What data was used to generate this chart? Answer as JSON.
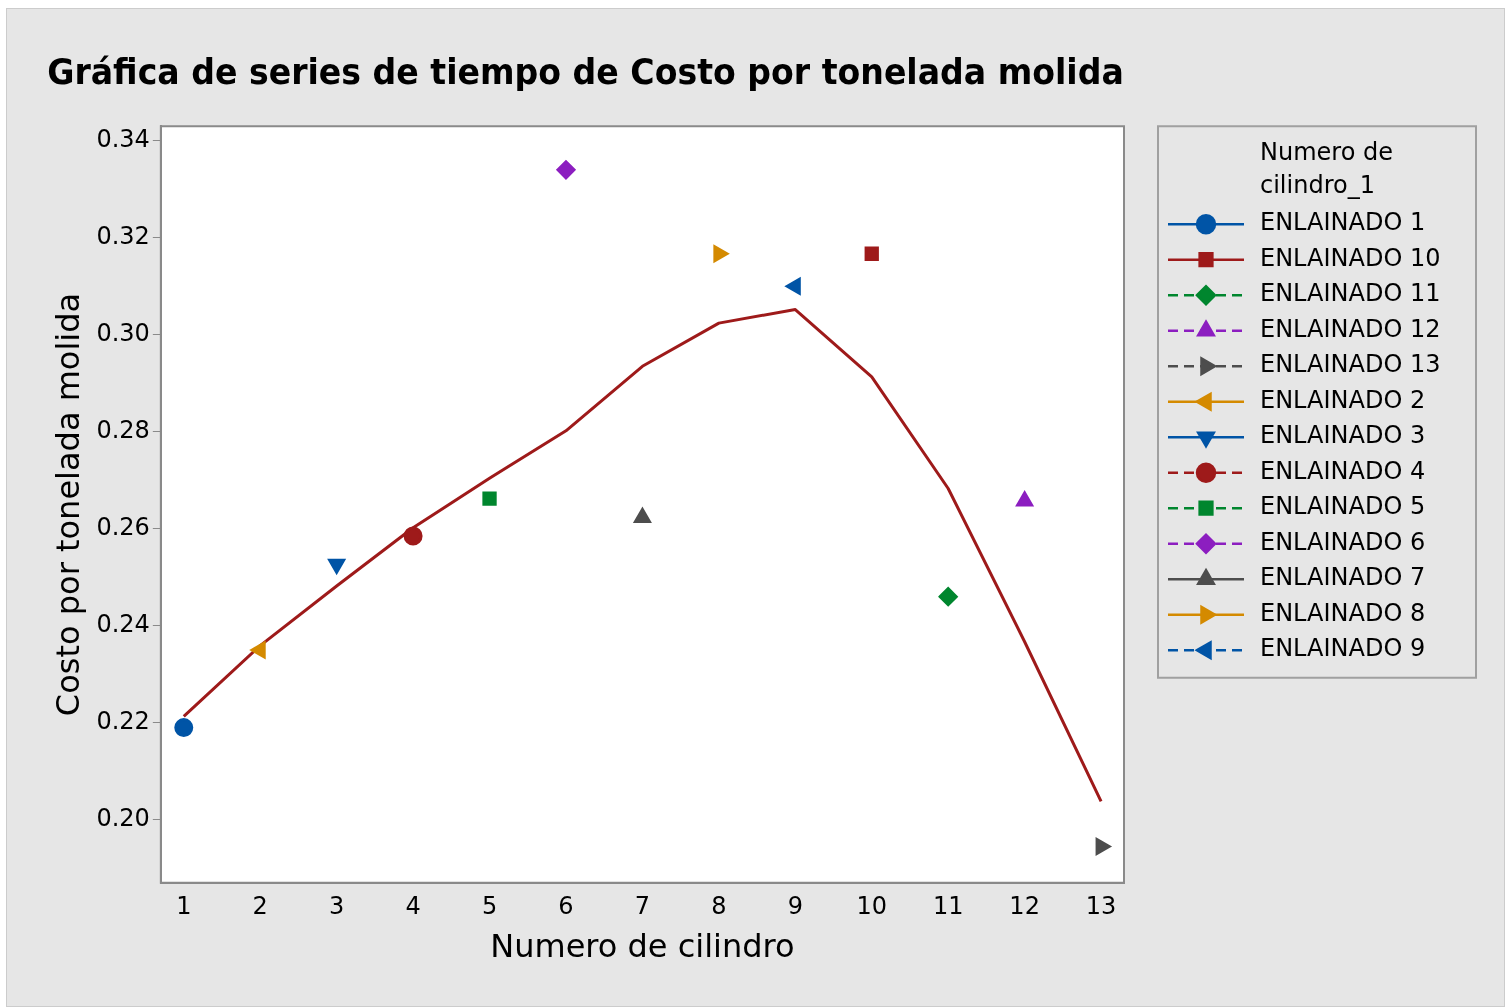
{
  "chart_data": {
    "type": "scatter",
    "title": "Gráfica de series de tiempo de Costo por tonelada molida",
    "xlabel": "Numero de cilindro",
    "ylabel": "Costo por tonelada molida",
    "legend_title": "Numero de cilindro_1",
    "legend": "right",
    "grid": false,
    "xlim": [
      0.7,
      13.3
    ],
    "xticks": [
      1,
      2,
      3,
      4,
      5,
      6,
      7,
      8,
      9,
      10,
      11,
      12,
      13
    ],
    "ylim": [
      0.187,
      0.343
    ],
    "yticks": [
      {
        "value": 0.2,
        "label": "0.20"
      },
      {
        "value": 0.22,
        "label": "0.22"
      },
      {
        "value": 0.24,
        "label": "0.24"
      },
      {
        "value": 0.26,
        "label": "0.26"
      },
      {
        "value": 0.28,
        "label": "0.28"
      },
      {
        "value": 0.3,
        "label": "0.30"
      },
      {
        "value": 0.32,
        "label": "0.32"
      },
      {
        "value": 0.34,
        "label": "0.34"
      }
    ],
    "series": [
      {
        "name": "ENLAINADO 1",
        "color": "#0054a6",
        "marker": "circle",
        "line_style": "solid",
        "x": [
          1
        ],
        "values": [
          0.219
        ]
      },
      {
        "name": "ENLAINADO 10",
        "color": "#9e1a1a",
        "marker": "square",
        "line_style": "solid",
        "x": [
          10
        ],
        "values": [
          0.3167
        ]
      },
      {
        "name": "ENLAINADO 11",
        "color": "#00862e",
        "marker": "diamond",
        "line_style": "dashed",
        "x": [
          11
        ],
        "values": [
          0.246
        ]
      },
      {
        "name": "ENLAINADO 12",
        "color": "#8c1ec0",
        "marker": "triangle",
        "line_style": "dashed",
        "x": [
          12
        ],
        "values": [
          0.2657
        ]
      },
      {
        "name": "ENLAINADO 13",
        "color": "#4d4d4d",
        "marker": "triangle-right",
        "line_style": "dashed",
        "x": [
          13
        ],
        "values": [
          0.1945
        ]
      },
      {
        "name": "ENLAINADO 2",
        "color": "#d48a00",
        "marker": "triangle-left",
        "line_style": "solid",
        "x": [
          2
        ],
        "values": [
          0.235
        ]
      },
      {
        "name": "ENLAINADO 3",
        "color": "#0054a6",
        "marker": "triangle-down",
        "line_style": "solid",
        "x": [
          3
        ],
        "values": [
          0.2527
        ]
      },
      {
        "name": "ENLAINADO 4",
        "color": "#9e1a1a",
        "marker": "circle",
        "line_style": "dashed",
        "x": [
          4
        ],
        "values": [
          0.2585
        ]
      },
      {
        "name": "ENLAINADO 5",
        "color": "#00862e",
        "marker": "square",
        "line_style": "dashed",
        "x": [
          5
        ],
        "values": [
          0.2662
        ]
      },
      {
        "name": "ENLAINADO 6",
        "color": "#8c1ec0",
        "marker": "diamond",
        "line_style": "dashed",
        "x": [
          6
        ],
        "values": [
          0.334
        ]
      },
      {
        "name": "ENLAINADO 7",
        "color": "#4d4d4d",
        "marker": "triangle",
        "line_style": "solid",
        "x": [
          7
        ],
        "values": [
          0.2623
        ]
      },
      {
        "name": "ENLAINADO 8",
        "color": "#d48a00",
        "marker": "triangle-right",
        "line_style": "solid",
        "x": [
          8
        ],
        "values": [
          0.3167
        ]
      },
      {
        "name": "ENLAINADO 9",
        "color": "#0054a6",
        "marker": "triangle-left",
        "line_style": "dashed",
        "x": [
          9
        ],
        "values": [
          0.31
        ]
      },
      {
        "type": "line",
        "color": "#9e1a1a",
        "marker": "none",
        "line_style": "solid",
        "x": [
          1,
          2,
          3,
          4,
          5,
          6,
          7,
          8,
          9,
          10,
          11,
          12,
          13
        ],
        "values": [
          0.2213,
          0.2359,
          0.2482,
          0.2602,
          0.2704,
          0.2802,
          0.2935,
          0.3024,
          0.3052,
          0.2913,
          0.2683,
          0.2367,
          0.2038
        ]
      }
    ]
  }
}
